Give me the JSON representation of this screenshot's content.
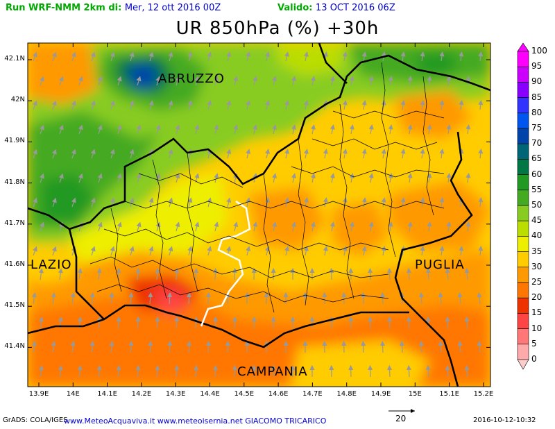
{
  "header": {
    "run_label": "Run WRF-NMM 2km di:",
    "run_date": "Mer, 12 ott 2016 00Z",
    "valid_label": "Valido:",
    "valid_date": "13 OCT 2016 06Z",
    "run_color": "#00aa00",
    "date_color": "#0000cc"
  },
  "map": {
    "title": "UR 850hPa (%) +30h",
    "lat_ticks": [
      "42.1N",
      "42N",
      "41.9N",
      "41.8N",
      "41.7N",
      "41.6N",
      "41.5N",
      "41.4N"
    ],
    "lon_ticks": [
      "13.9E",
      "14E",
      "14.1E",
      "14.2E",
      "14.3E",
      "14.4E",
      "14.5E",
      "14.6E",
      "14.7E",
      "14.8E",
      "14.9E",
      "15E",
      "15.1E",
      "15.2E"
    ],
    "regions": {
      "abruzzo": "ABRUZZO",
      "lazio": "LAZIO",
      "puglia": "PUGLIA",
      "campania": "CAMPANIA"
    }
  },
  "colorbar": {
    "levels": [
      "100",
      "95",
      "90",
      "85",
      "80",
      "75",
      "70",
      "65",
      "60",
      "55",
      "50",
      "45",
      "40",
      "35",
      "30",
      "25",
      "20",
      "15",
      "10",
      "5",
      "0"
    ],
    "colors": [
      "#ff00ff",
      "#cc00ff",
      "#8800ff",
      "#3333ff",
      "#0055ee",
      "#0044aa",
      "#006677",
      "#007744",
      "#229922",
      "#44aa22",
      "#88cc22",
      "#bbdd00",
      "#eeee00",
      "#ffcc00",
      "#ff9900",
      "#ff7700",
      "#ee3300",
      "#ff4444",
      "#ff7777",
      "#ffaaaa",
      "#ffcccc"
    ]
  },
  "footer": {
    "grads": "GrADS: COLA/IGES",
    "credits": "www.MeteoAcquaviva.it www.meteoisernia.net GIACOMO TRICARICO",
    "vector_ref": "20",
    "timestamp": "2016-10-12-10:32"
  }
}
